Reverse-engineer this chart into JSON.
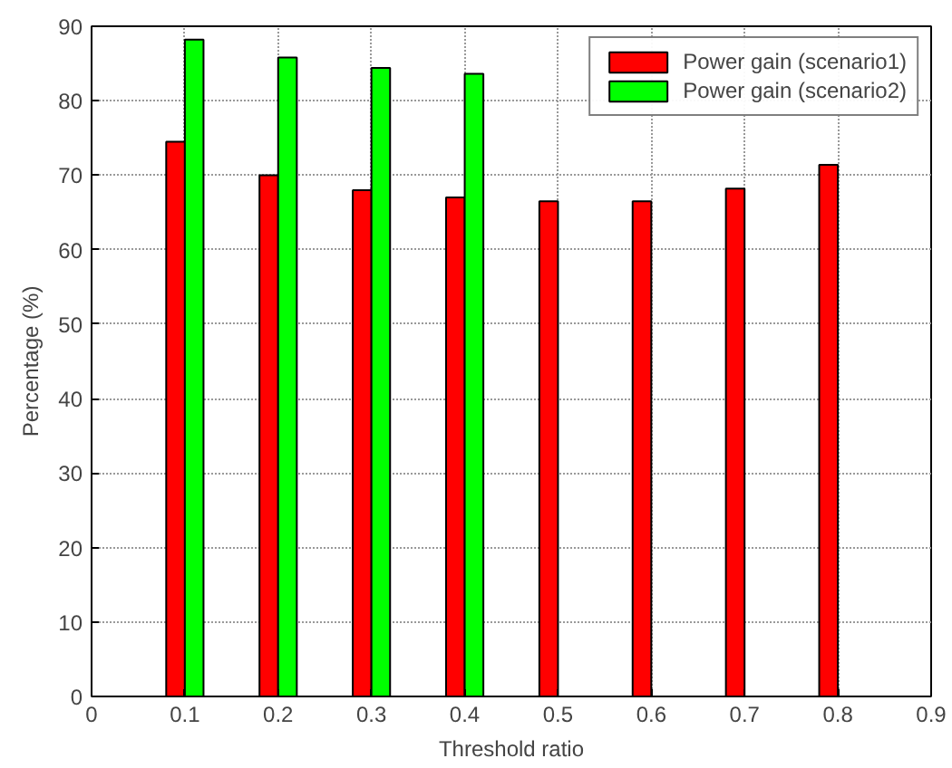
{
  "chart_data": {
    "type": "bar",
    "xlabel": "Threshold ratio",
    "ylabel": "Percentage (%)",
    "x": [
      0.1,
      0.2,
      0.3,
      0.4,
      0.5,
      0.6,
      0.7,
      0.8
    ],
    "series": [
      {
        "name": "Power gain (scenario1)",
        "color": "#ff0000",
        "values": [
          74.5,
          70,
          68,
          67,
          66.5,
          66.5,
          68.2,
          71.4
        ]
      },
      {
        "name": "Power gain (scenario2)",
        "color": "#00ff00",
        "values": [
          88.2,
          85.8,
          84.4,
          83.6,
          null,
          null,
          null,
          null
        ]
      }
    ],
    "xlim": [
      0,
      0.9
    ],
    "xticks": [
      0,
      0.1,
      0.2,
      0.3,
      0.4,
      0.5,
      0.6,
      0.7,
      0.8,
      0.9
    ],
    "ylim": [
      0,
      90
    ],
    "yticks": [
      0,
      10,
      20,
      30,
      40,
      50,
      60,
      70,
      80,
      90
    ],
    "grid": true,
    "legend": "top right"
  }
}
